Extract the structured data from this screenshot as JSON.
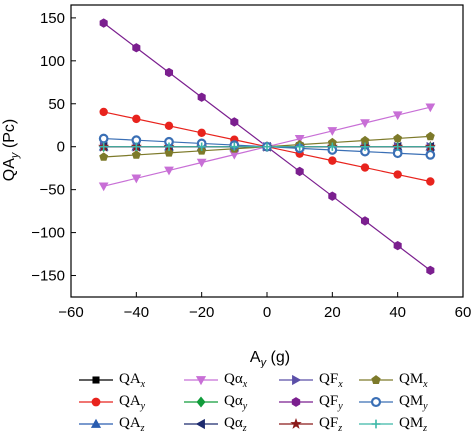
{
  "chart_data": {
    "type": "line",
    "xlabel": "A",
    "xlabel_sub": "y",
    "xlabel_unit": " (g)",
    "ylabel": "QA",
    "ylabel_sub": "y",
    "ylabel_unit": " (Pc)",
    "xlim": [
      -60,
      60
    ],
    "ylim": [
      -175,
      165
    ],
    "x_ticks": [
      -60,
      -40,
      -20,
      0,
      20,
      40,
      60
    ],
    "x_tick_labels": [
      "−60",
      "−40",
      "−20",
      "0",
      "20",
      "40",
      "60"
    ],
    "y_ticks": [
      -150,
      -100,
      -50,
      0,
      50,
      100,
      150
    ],
    "y_tick_labels": [
      "−150",
      "−100",
      "−50",
      "0",
      "50",
      "100",
      "150"
    ],
    "grid": false,
    "legend_position": "bottom",
    "x": [
      -50,
      -40,
      -30,
      -20,
      -10,
      0,
      10,
      20,
      30,
      40,
      50
    ],
    "series": [
      {
        "name": "QA",
        "sub": "x",
        "color": "#000000",
        "marker": "square",
        "values": [
          0,
          0,
          0,
          0,
          0,
          0,
          0,
          0,
          0,
          0,
          0
        ]
      },
      {
        "name": "QA",
        "sub": "y",
        "color": "#e8231d",
        "marker": "circle",
        "values": [
          40.5,
          32.4,
          24.3,
          16.2,
          8.1,
          0,
          -8.1,
          -16.2,
          -24.3,
          -32.4,
          -40.5
        ]
      },
      {
        "name": "QA",
        "sub": "z",
        "color": "#2a5db0",
        "marker": "triangle-up",
        "values": [
          0,
          0,
          0,
          0,
          0,
          0,
          0,
          0,
          0,
          0,
          0
        ]
      },
      {
        "name": "Qα",
        "sub": "x",
        "color": "#c86fd6",
        "marker": "triangle-down",
        "values": [
          -46,
          -36.8,
          -27.6,
          -18.4,
          -9.2,
          0,
          9.2,
          18.4,
          27.6,
          36.8,
          46
        ]
      },
      {
        "name": "Qα",
        "sub": "y",
        "color": "#119c3b",
        "marker": "diamond",
        "values": [
          0,
          0,
          0,
          0,
          0,
          0,
          0,
          0,
          0,
          0,
          0
        ]
      },
      {
        "name": "Qα",
        "sub": "z",
        "color": "#1c2a6e",
        "marker": "triangle-left",
        "values": [
          0,
          0,
          0,
          0,
          0,
          0,
          0,
          0,
          0,
          0,
          0
        ]
      },
      {
        "name": "QF",
        "sub": "x",
        "color": "#5b4fa8",
        "marker": "triangle-right",
        "values": [
          0,
          0,
          0,
          0,
          0,
          0,
          0,
          0,
          0,
          0,
          0
        ]
      },
      {
        "name": "QF",
        "sub": "y",
        "color": "#7b1f8f",
        "marker": "hexagon",
        "values": [
          144,
          115.2,
          86.4,
          57.6,
          28.8,
          0,
          -28.8,
          -57.6,
          -86.4,
          -115.2,
          -144
        ]
      },
      {
        "name": "QF",
        "sub": "z",
        "color": "#8b1a1a",
        "marker": "star",
        "values": [
          0,
          0,
          0,
          0,
          0,
          0,
          0,
          0,
          0,
          0,
          0
        ]
      },
      {
        "name": "QM",
        "sub": "x",
        "color": "#7d7a2a",
        "marker": "pentagon",
        "values": [
          -12,
          -9.6,
          -7.2,
          -4.8,
          -2.4,
          0,
          2.4,
          4.8,
          7.2,
          9.6,
          12
        ]
      },
      {
        "name": "QM",
        "sub": "y",
        "color": "#3a6fb5",
        "marker": "ring",
        "values": [
          9.5,
          7.6,
          5.7,
          3.8,
          1.9,
          0,
          -1.9,
          -3.8,
          -5.7,
          -7.6,
          -9.5
        ]
      },
      {
        "name": "QM",
        "sub": "z",
        "color": "#3cb8a8",
        "marker": "plus",
        "values": [
          0,
          0,
          0,
          0,
          0,
          0,
          0,
          0,
          0,
          0,
          0
        ]
      }
    ]
  }
}
